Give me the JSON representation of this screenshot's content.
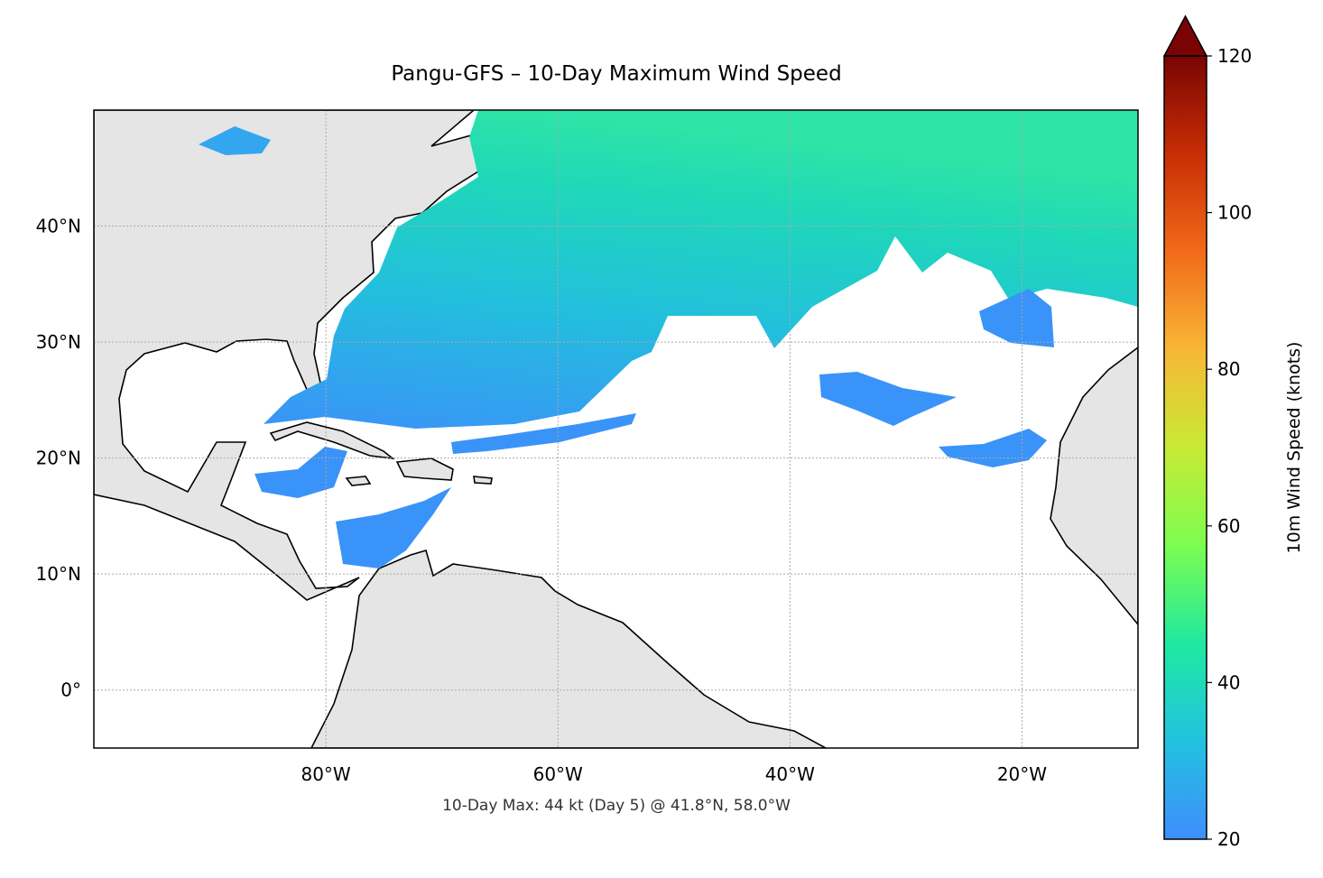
{
  "chart_data": {
    "type": "map",
    "title": "Pangu-GFS – 10-Day Maximum Wind Speed",
    "footnote": "10-Day Max: 44 kt (Day 5) @ 41.8°N, 58.0°W",
    "xlim": [
      -100,
      -10
    ],
    "ylim": [
      -5,
      50
    ],
    "xticks": [
      {
        "value": -80,
        "label": "80°W"
      },
      {
        "value": -60,
        "label": "60°W"
      },
      {
        "value": -40,
        "label": "40°W"
      },
      {
        "value": -20,
        "label": "20°W"
      }
    ],
    "yticks": [
      {
        "value": 0,
        "label": "0°"
      },
      {
        "value": 10,
        "label": "10°N"
      },
      {
        "value": 20,
        "label": "20°N"
      },
      {
        "value": 30,
        "label": "30°N"
      },
      {
        "value": 40,
        "label": "40°N"
      }
    ],
    "grid": true,
    "colorbar": {
      "label": "10m Wind Speed (knots)",
      "clim": [
        20,
        120
      ],
      "ticks": [
        20,
        40,
        60,
        80,
        100,
        120
      ],
      "colormap": [
        "#3f8efc",
        "#22c2e0",
        "#1fe9a0",
        "#7cfd4f",
        "#c8ea34",
        "#f8b735",
        "#f26a1a",
        "#c72e05",
        "#7a0403"
      ]
    }
  }
}
